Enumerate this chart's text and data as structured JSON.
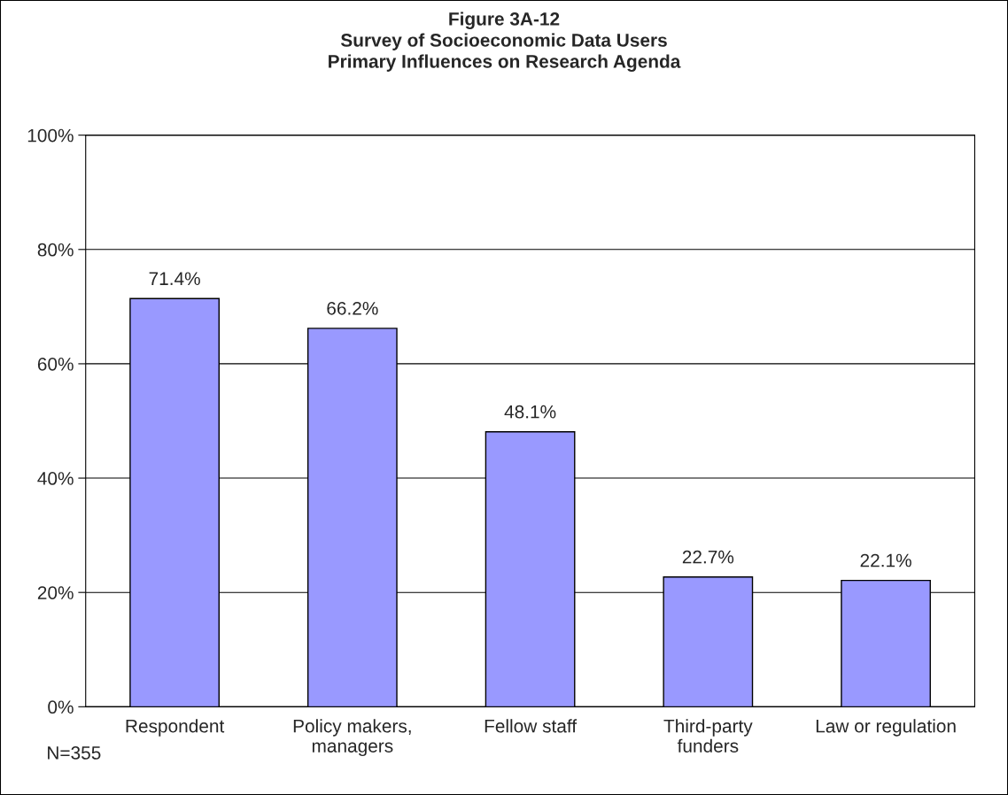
{
  "chart_data": {
    "type": "bar",
    "title": "Figure 3A-12\nSurvey of Socioeconomic Data Users\nPrimary Influences on Research Agenda",
    "categories": [
      "Respondent",
      "Policy makers,\nmanagers",
      "Fellow staff",
      "Third-party\nfunders",
      "Law or regulation"
    ],
    "values": [
      71.4,
      66.2,
      48.1,
      22.7,
      22.1
    ],
    "value_labels": [
      "71.4%",
      "66.2%",
      "48.1%",
      "22.7%",
      "22.1%"
    ],
    "color": "#9999ff",
    "ylim": [
      0,
      100
    ],
    "yticks": [
      {
        "value": 0,
        "label": "0%"
      },
      {
        "value": 20,
        "label": "20%"
      },
      {
        "value": 40,
        "label": "40%"
      },
      {
        "value": 60,
        "label": "60%"
      },
      {
        "value": 80,
        "label": "80%"
      },
      {
        "value": 100,
        "label": "100%"
      }
    ],
    "grid": "y",
    "legend": false,
    "annotations": [
      "N=355"
    ]
  }
}
